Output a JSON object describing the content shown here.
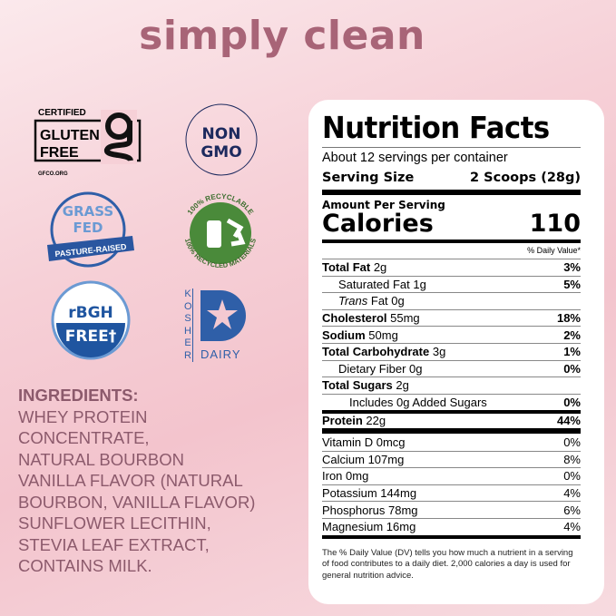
{
  "headline": "simply clean",
  "badges": {
    "gluten_free": {
      "top": "CERTIFIED",
      "line1": "GLUTEN",
      "line2": "FREE",
      "url": "GFCO.ORG",
      "tm": "™"
    },
    "non_gmo": {
      "line1": "NON",
      "line2": "GMO"
    },
    "grass_fed": {
      "line1": "GRASS",
      "line2": "FED",
      "banner": "PASTURE-RAISED"
    },
    "recyclable": {
      "top": "100% RECYCLABLE",
      "bottom": "100% RECYCLED MATERIALS"
    },
    "rbgh": {
      "line1": "rBGH",
      "line2": "FREE†"
    },
    "kosher": {
      "side": "KOSHER",
      "bottom": "DAIRY"
    }
  },
  "ingredients": {
    "heading": "INGREDIENTS:",
    "lines": [
      "WHEY PROTEIN",
      "CONCENTRATE,",
      "NATURAL BOURBON",
      "VANILLA FLAVOR (NATURAL",
      "BOURBON, VANILLA FLAVOR)",
      "SUNFLOWER LECITHIN,",
      "STEVIA LEAF EXTRACT,",
      "CONTAINS MILK."
    ]
  },
  "nutrition": {
    "title": "Nutrition Facts",
    "servings": "About 12 servings per container",
    "serving_size_label": "Serving Size",
    "serving_size_value": "2 Scoops (28g)",
    "amount_per_serving": "Amount Per Serving",
    "calories_label": "Calories",
    "calories_value": "110",
    "dv_header": "% Daily Value*",
    "rows": [
      {
        "name": "Total Fat",
        "amount": "2g",
        "dv": "3%",
        "bold": true,
        "indent": false
      },
      {
        "name": "Saturated Fat",
        "amount": "1g",
        "dv": "5%",
        "bold": false,
        "indent": true
      },
      {
        "name": "Trans",
        "amount": "Fat 0g",
        "dv": "",
        "bold": false,
        "indent": true,
        "italic": true
      },
      {
        "name": "Cholesterol",
        "amount": "55mg",
        "dv": "18%",
        "bold": true,
        "indent": false
      },
      {
        "name": "Sodium",
        "amount": "50mg",
        "dv": "2%",
        "bold": true,
        "indent": false
      },
      {
        "name": "Total Carbohydrate",
        "amount": "3g",
        "dv": "1%",
        "bold": true,
        "indent": false
      },
      {
        "name": "Dietary Fiber",
        "amount": "0g",
        "dv": "0%",
        "bold": false,
        "indent": true
      },
      {
        "name": "Total Sugars",
        "amount": "2g",
        "dv": "",
        "bold": true,
        "indent": false
      },
      {
        "name": "Includes 0g Added Sugars",
        "amount": "",
        "dv": "0%",
        "bold": false,
        "indent": true,
        "indent2": true
      },
      {
        "name": "Protein",
        "amount": "22g",
        "dv": "44%",
        "bold": true,
        "indent": false
      }
    ],
    "vitamins": [
      {
        "name": "Vitamin D 0mcg",
        "dv": "0%"
      },
      {
        "name": "Calcium 107mg",
        "dv": "8%"
      },
      {
        "name": "Iron 0mg",
        "dv": "0%"
      },
      {
        "name": "Potassium 144mg",
        "dv": "4%"
      },
      {
        "name": "Phosphorus 78mg",
        "dv": "6%"
      },
      {
        "name": "Magnesium 16mg",
        "dv": "4%"
      }
    ],
    "footnote": "The % Daily Value (DV) tells you how much a nutrient in a serving of food contributes to a daily diet. 2,000 calories a day is used for general nutrition advice."
  },
  "colors": {
    "headline": "#a86477",
    "ingredients": "#8c5a6c",
    "badge_navy": "#1d2a5e",
    "badge_blue": "#2f5fa8",
    "badge_light_blue": "#6b9ad3",
    "recycle_green": "#4a8a3a"
  }
}
